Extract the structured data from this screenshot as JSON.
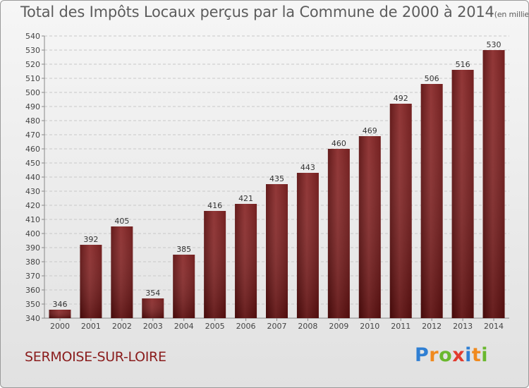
{
  "title": "Total des Impôts Locaux perçus par la Commune de 2000 à 2014",
  "unit": "(en milliers d'€)",
  "commune": "SERMOISE-SUR-LOIRE",
  "brand": {
    "text": "Proxiti",
    "colors": [
      "#2f7fd3",
      "#f08a1e",
      "#6ab82e",
      "#e23b2e",
      "#2f7fd3",
      "#f08a1e",
      "#6ab82e"
    ]
  },
  "chart_data": {
    "type": "bar",
    "categories": [
      "2000",
      "2001",
      "2002",
      "2003",
      "2004",
      "2005",
      "2006",
      "2007",
      "2008",
      "2009",
      "2010",
      "2011",
      "2012",
      "2013",
      "2014"
    ],
    "values": [
      346,
      392,
      405,
      354,
      385,
      416,
      421,
      435,
      443,
      460,
      469,
      492,
      506,
      516,
      530
    ],
    "ylim": [
      340,
      540
    ],
    "yticks": [
      340,
      350,
      360,
      370,
      380,
      390,
      400,
      410,
      420,
      430,
      440,
      450,
      460,
      470,
      480,
      490,
      500,
      510,
      520,
      530,
      540
    ],
    "grid": true,
    "bar_color": "#7a1a1a",
    "xlabel": "",
    "ylabel": ""
  }
}
